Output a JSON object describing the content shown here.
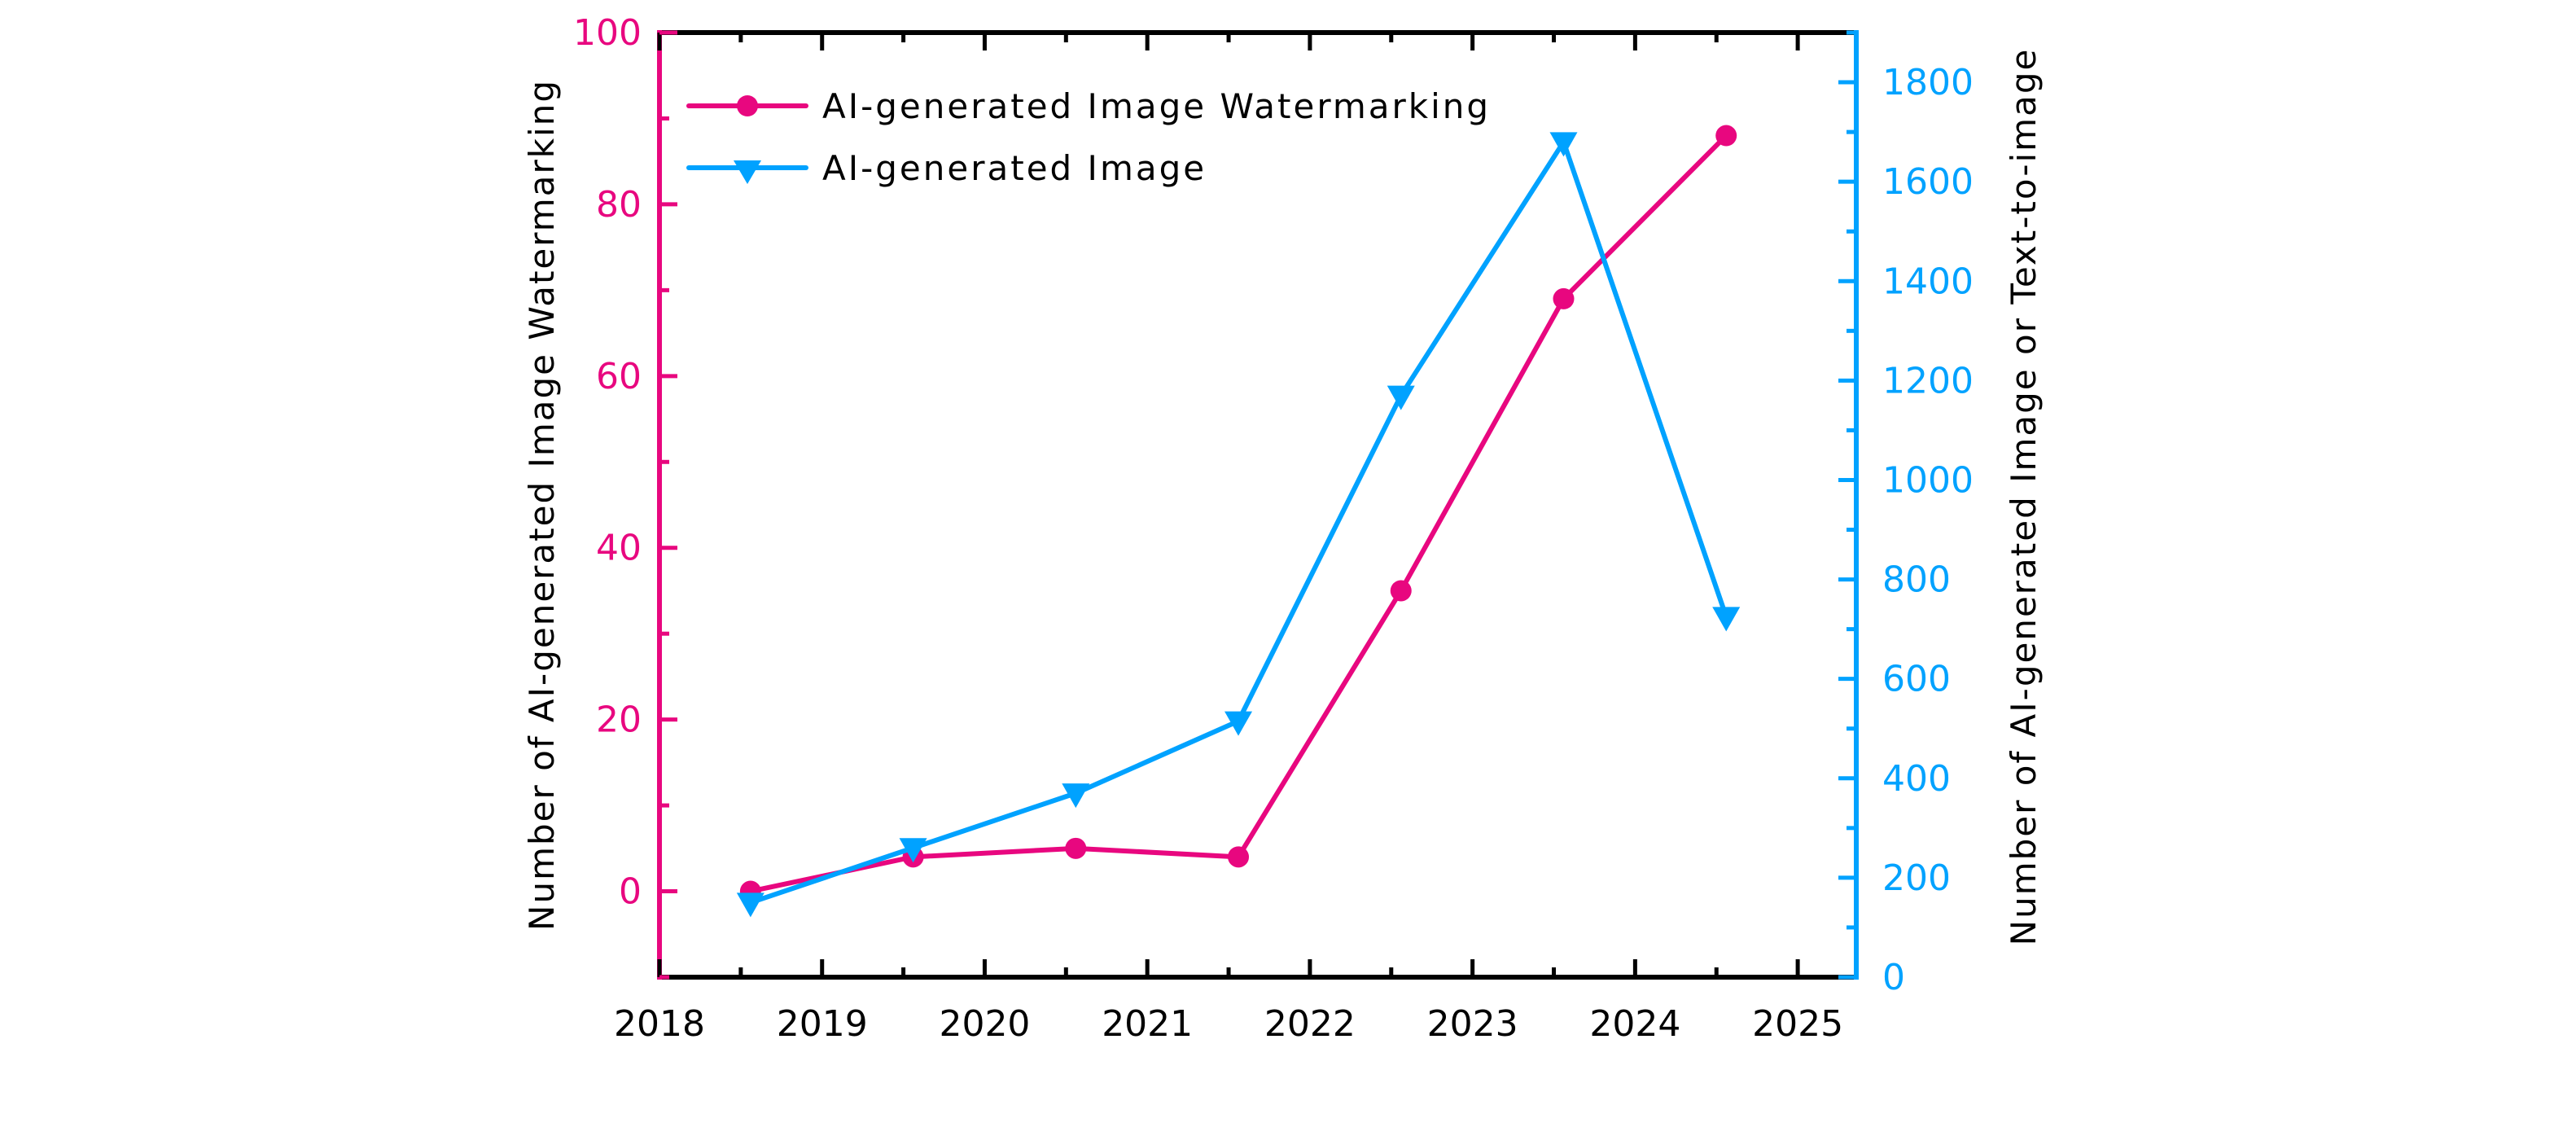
{
  "chart_data": {
    "type": "line",
    "title": "",
    "xlabel": "",
    "ylabel": "Number of AI-generated Image Watermarking",
    "y2label": "Number of AI-generated Image or Text-to-image",
    "xlim": [
      2018,
      2025.36
    ],
    "ylim": [
      -10,
      100
    ],
    "y2lim": [
      0,
      1900
    ],
    "xticks": [
      "2018",
      "2019",
      "2020",
      "2021",
      "2022",
      "2023",
      "2024",
      "2025"
    ],
    "yticks": [
      "0",
      "20",
      "40",
      "60",
      "80",
      "100"
    ],
    "y2ticks": [
      "0",
      "200",
      "400",
      "600",
      "800",
      "1000",
      "1200",
      "1400",
      "1600",
      "1800"
    ],
    "x": [
      2018.56,
      2019.56,
      2020.56,
      2021.56,
      2022.56,
      2023.56,
      2024.56
    ],
    "series": [
      {
        "name": "AI-generated Image Watermarking",
        "axis": "left",
        "marker": "circle",
        "color": "#E8077F",
        "values": [
          0,
          4,
          5,
          4,
          35,
          69,
          88
        ]
      },
      {
        "name": "AI-generated Image",
        "axis": "right",
        "marker": "triangle-down",
        "color": "#00A2FF",
        "values": [
          150,
          260,
          370,
          515,
          1170,
          1680,
          725
        ]
      }
    ],
    "legend_position": "top-left",
    "grid": false
  }
}
